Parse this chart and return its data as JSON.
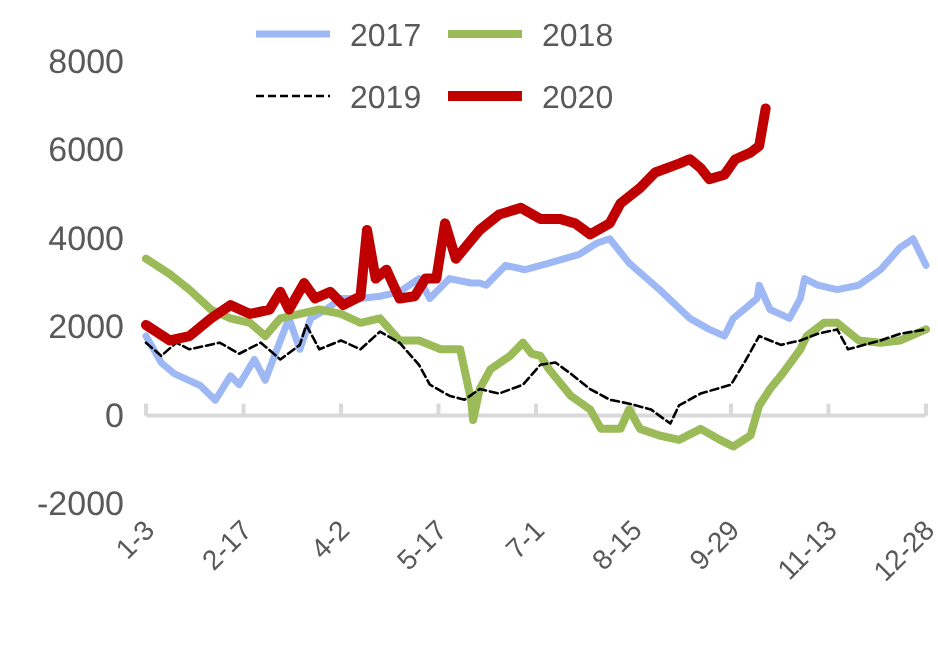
{
  "chart_data": {
    "type": "line",
    "xlim": [
      "--01-03",
      "--12-28"
    ],
    "xticks": [
      {
        "value": "--01-03",
        "label": "1-3"
      },
      {
        "value": "--02-17",
        "label": "2-17"
      },
      {
        "value": "--04-02",
        "label": "4-2"
      },
      {
        "value": "--05-17",
        "label": "5-17"
      },
      {
        "value": "--07-01",
        "label": "7-1"
      },
      {
        "value": "--08-15",
        "label": "8-15"
      },
      {
        "value": "--09-29",
        "label": "9-29"
      },
      {
        "value": "--11-13",
        "label": "11-13"
      },
      {
        "value": "--12-28",
        "label": "12-28"
      }
    ],
    "ylim": [
      -2000,
      8000
    ],
    "yticks": [
      -2000,
      0,
      2000,
      4000,
      6000,
      8000
    ],
    "legend": "top",
    "series": [
      {
        "name": "2017",
        "color": "#9db8f5",
        "line_style": "solid",
        "x": [
          "--01-03",
          "--01-10",
          "--01-16",
          "--01-28",
          "--02-04",
          "--02-11",
          "--02-15",
          "--02-22",
          "--02-27",
          "--03-05",
          "--03-09",
          "--03-14",
          "--03-19",
          "--03-26",
          "--04-02",
          "--04-11",
          "--04-20",
          "--04-29",
          "--05-08",
          "--05-13",
          "--05-22",
          "--06-01",
          "--06-05",
          "--06-08",
          "--06-17",
          "--06-26",
          "--07-07",
          "--07-21",
          "--07-29",
          "--08-04",
          "--08-13",
          "--08-27",
          "--09-10",
          "--09-19",
          "--09-26",
          "--09-30",
          "--10-05",
          "--10-11",
          "--10-12",
          "--10-17",
          "--10-26",
          "--10-31",
          "--11-02",
          "--11-08",
          "--11-17",
          "--11-27",
          "--12-07",
          "--12-16",
          "--12-22",
          "--12-28"
        ],
        "values": [
          1800,
          1200,
          950,
          680,
          350,
          900,
          700,
          1270,
          800,
          1700,
          2200,
          1500,
          2200,
          2400,
          2650,
          2650,
          2700,
          2800,
          3100,
          2650,
          3100,
          3000,
          3000,
          2950,
          3400,
          3300,
          3450,
          3650,
          3900,
          4000,
          3450,
          2850,
          2200,
          1950,
          1800,
          2200,
          2400,
          2650,
          2950,
          2400,
          2200,
          2650,
          3100,
          2950,
          2850,
          2950,
          3300,
          3800,
          4000,
          3400
        ]
      },
      {
        "name": "2018",
        "color": "#9bbb59",
        "line_style": "solid",
        "x": [
          "--01-03",
          "--01-14",
          "--01-23",
          "--02-02",
          "--02-11",
          "--02-20",
          "--02-27",
          "--03-05",
          "--03-14",
          "--03-23",
          "--04-02",
          "--04-11",
          "--04-20",
          "--04-29",
          "--05-08",
          "--05-18",
          "--05-27",
          "--06-01",
          "--06-02",
          "--06-05",
          "--06-10",
          "--06-19",
          "--06-25",
          "--06-29",
          "--07-03",
          "--07-07",
          "--07-17",
          "--07-26",
          "--07-31",
          "--08-09",
          "--08-13",
          "--08-18",
          "--08-27",
          "--09-05",
          "--09-15",
          "--09-24",
          "--09-30",
          "--10-08",
          "--10-12",
          "--10-17",
          "--10-22",
          "--10-31",
          "--11-03",
          "--11-11",
          "--11-17",
          "--11-27",
          "--12-07",
          "--12-16",
          "--12-28"
        ],
        "values": [
          3550,
          3200,
          2850,
          2400,
          2200,
          2100,
          1800,
          2200,
          2300,
          2400,
          2300,
          2100,
          2200,
          1700,
          1700,
          1500,
          1500,
          360,
          -100,
          600,
          1050,
          1350,
          1650,
          1400,
          1350,
          1050,
          450,
          140,
          -300,
          -300,
          140,
          -300,
          -450,
          -550,
          -300,
          -550,
          -700,
          -450,
          230,
          600,
          900,
          1500,
          1800,
          2100,
          2100,
          1700,
          1650,
          1700,
          1950
        ]
      },
      {
        "name": "2019",
        "color": "#000000",
        "line_style": "dashed",
        "x": [
          "--01-03",
          "--01-10",
          "--01-17",
          "--01-23",
          "--02-06",
          "--02-15",
          "--02-25",
          "--03-05",
          "--03-14",
          "--03-17",
          "--03-23",
          "--04-02",
          "--04-11",
          "--04-20",
          "--04-29",
          "--05-08",
          "--05-13",
          "--05-22",
          "--05-29",
          "--06-05",
          "--06-14",
          "--06-25",
          "--07-03",
          "--07-10",
          "--07-17",
          "--07-26",
          "--08-04",
          "--08-13",
          "--08-23",
          "--09-01",
          "--09-05",
          "--09-15",
          "--09-29",
          "--10-06",
          "--10-12",
          "--10-22",
          "--10-31",
          "--11-08",
          "--11-17",
          "--11-22",
          "--12-07",
          "--12-16",
          "--12-28"
        ],
        "values": [
          1650,
          1350,
          1650,
          1500,
          1650,
          1400,
          1650,
          1270,
          1600,
          2050,
          1500,
          1700,
          1500,
          1900,
          1650,
          1150,
          700,
          450,
          360,
          600,
          500,
          700,
          1150,
          1200,
          950,
          600,
          360,
          270,
          140,
          -180,
          230,
          500,
          700,
          1270,
          1800,
          1600,
          1700,
          1850,
          1950,
          1500,
          1700,
          1850,
          1950
        ]
      },
      {
        "name": "2020",
        "color": "#c00000",
        "line_style": "solid",
        "x": [
          "--01-03",
          "--01-14",
          "--01-23",
          "--02-02",
          "--02-11",
          "--02-20",
          "--02-29",
          "--03-05",
          "--03-09",
          "--03-16",
          "--03-21",
          "--03-28",
          "--04-03",
          "--04-11",
          "--04-14",
          "--04-18",
          "--04-23",
          "--04-29",
          "--05-06",
          "--05-11",
          "--05-16",
          "--05-20",
          "--05-25",
          "--06-05",
          "--06-14",
          "--06-24",
          "--07-03",
          "--07-12",
          "--07-19",
          "--07-26",
          "--08-04",
          "--08-09",
          "--08-18",
          "--08-25",
          "--09-05",
          "--09-10",
          "--09-15",
          "--09-19",
          "--09-26",
          "--10-01",
          "--10-08",
          "--10-12",
          "--10-15"
        ],
        "values": [
          2050,
          1700,
          1800,
          2200,
          2500,
          2300,
          2400,
          2800,
          2400,
          3000,
          2650,
          2800,
          2500,
          2700,
          4200,
          3100,
          3300,
          2650,
          2700,
          3100,
          3100,
          4350,
          3550,
          4200,
          4550,
          4700,
          4450,
          4450,
          4350,
          4100,
          4350,
          4800,
          5150,
          5500,
          5700,
          5800,
          5600,
          5350,
          5450,
          5800,
          5950,
          6100,
          6950
        ]
      }
    ]
  }
}
